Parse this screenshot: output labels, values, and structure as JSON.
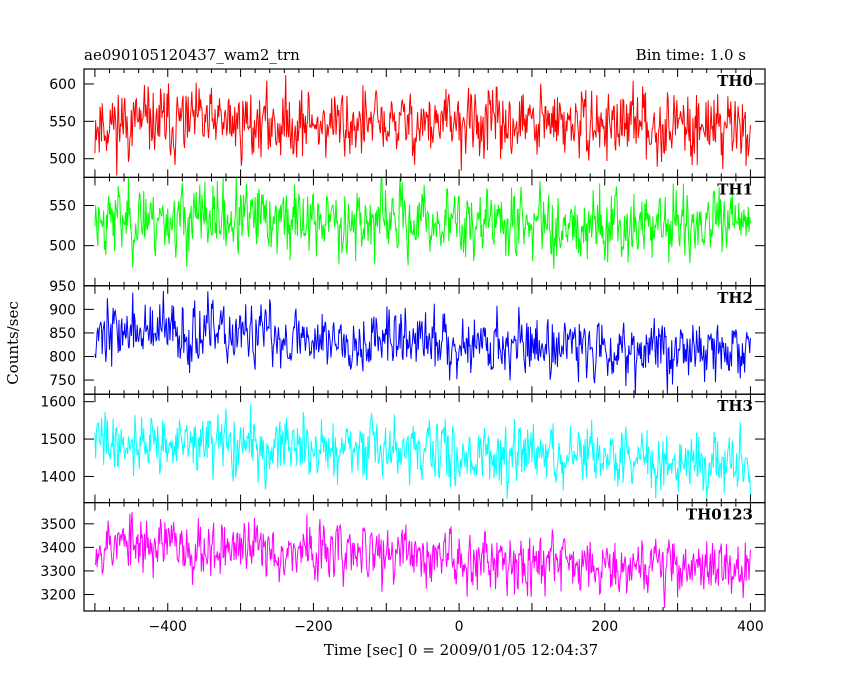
{
  "header": {
    "title": "ae090105120437_wam2_trn",
    "bin_time": "Bin time: 1.0 s"
  },
  "chart_data": {
    "type": "line",
    "xlabel": "Time [sec] 0 = 2009/01/05 12:04:37",
    "ylabel": "Counts/sec",
    "xlim": [
      -515,
      420
    ],
    "x_ticks": [
      -400,
      -200,
      0,
      200,
      400
    ],
    "x_range": [
      -500,
      400
    ],
    "bin": 1.0,
    "panels": [
      {
        "name": "TH0",
        "color": "#ff0000",
        "ylim": [
          475,
          620
        ],
        "yticks": [
          500,
          550,
          600
        ],
        "trend": [
          [
            -500,
            548
          ],
          [
            400,
            545
          ]
        ],
        "amp": 32,
        "seed": 11
      },
      {
        "name": "TH1",
        "color": "#00ff00",
        "ylim": [
          450,
          585
        ],
        "yticks": [
          500,
          550
        ],
        "trend": [
          [
            -500,
            535
          ],
          [
            400,
            525
          ]
        ],
        "amp": 30,
        "seed": 23
      },
      {
        "name": "TH2",
        "color": "#0000ff",
        "ylim": [
          720,
          950
        ],
        "yticks": [
          750,
          800,
          850,
          900,
          950
        ],
        "trend": [
          [
            -500,
            855
          ],
          [
            400,
            810
          ]
        ],
        "amp": 45,
        "seed": 37
      },
      {
        "name": "TH3",
        "color": "#00ffff",
        "ylim": [
          1330,
          1620
        ],
        "yticks": [
          1400,
          1500,
          1600
        ],
        "trend": [
          [
            -500,
            1495
          ],
          [
            400,
            1435
          ]
        ],
        "amp": 55,
        "seed": 41
      },
      {
        "name": "TH0123",
        "color": "#ff00ff",
        "ylim": [
          3130,
          3590
        ],
        "yticks": [
          3200,
          3300,
          3400,
          3500
        ],
        "trend": [
          [
            -500,
            3420
          ],
          [
            400,
            3310
          ]
        ],
        "amp": 85,
        "seed": 53
      }
    ]
  }
}
